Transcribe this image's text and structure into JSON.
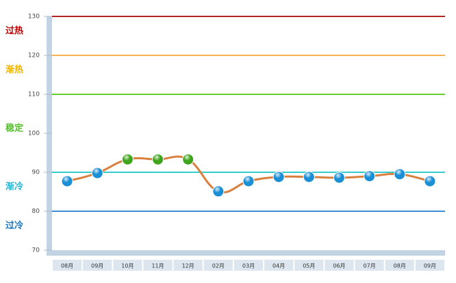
{
  "chart_data": {
    "type": "line",
    "categories": [
      "08月",
      "09月",
      "10月",
      "11月",
      "12月",
      "02月",
      "03月",
      "04月",
      "05月",
      "06月",
      "07月",
      "08月",
      "09月"
    ],
    "series": [
      {
        "color": "#d9803f",
        "values": [
          87.7,
          89.8,
          93.3,
          93.3,
          93.3,
          85.1,
          87.7,
          88.8,
          88.8,
          88.6,
          89.0,
          89.5,
          87.7
        ],
        "marker_colors": [
          "#1a8fd6",
          "#1a8fd6",
          "#3fa51c",
          "#3fa51c",
          "#3fa51c",
          "#1a8fd6",
          "#1a8fd6",
          "#1a8fd6",
          "#1a8fd6",
          "#1a8fd6",
          "#1a8fd6",
          "#1a8fd6",
          "#1a8fd6"
        ]
      }
    ],
    "ylim": [
      70,
      130
    ],
    "yticks": [
      70,
      80,
      90,
      100,
      110,
      120,
      130
    ],
    "reference_lines": [
      {
        "value": 130,
        "color": "#b22222"
      },
      {
        "value": 120,
        "color": "#f7b251"
      },
      {
        "value": 110,
        "color": "#66cc33"
      },
      {
        "value": 90,
        "color": "#33cccc"
      },
      {
        "value": 80,
        "color": "#3a8fd6"
      }
    ],
    "zones": [
      {
        "label": "过热",
        "color": "#c00000"
      },
      {
        "label": "渐热",
        "color": "#f0b400"
      },
      {
        "label": "稳定",
        "color": "#55c02c"
      },
      {
        "label": "渐冷",
        "color": "#25b6d6"
      },
      {
        "label": "过冷",
        "color": "#1a78c2"
      }
    ]
  }
}
